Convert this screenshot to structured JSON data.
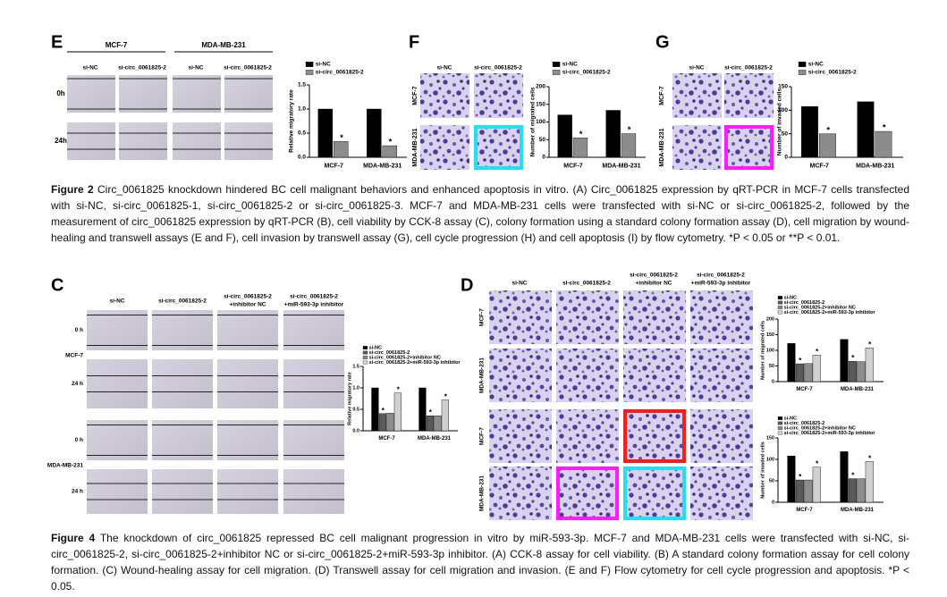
{
  "figure2": {
    "E": {
      "label": "E",
      "groups": [
        "MCF-7",
        "MDA-MB-231"
      ],
      "columns": [
        "si-NC",
        "si-circ_0061825-2",
        "si-NC",
        "si-circ_0061825-2"
      ],
      "rows": [
        "0h",
        "24h"
      ],
      "chart": {
        "type": "bar",
        "ylabel": "Relative migratory rate",
        "categories": [
          "MCF-7",
          "MDA-MB-231"
        ],
        "series": [
          {
            "name": "si-NC",
            "color": "#000000",
            "values": [
              1.0,
              1.0
            ]
          },
          {
            "name": "si-circ_0061825-2",
            "color": "#8c8c8c",
            "values": [
              0.33,
              0.24
            ]
          }
        ],
        "ylim": [
          0,
          1.5
        ],
        "yticks": [
          {
            "value": 0,
            "label": "0.0"
          },
          {
            "value": 0.5,
            "label": "0.5"
          },
          {
            "value": 1.0,
            "label": "1.0"
          },
          {
            "value": 1.5,
            "label": "1.5"
          }
        ],
        "significance": "*"
      }
    },
    "F": {
      "label": "F",
      "columns": [
        "si-NC",
        "si-circ_0061825-2"
      ],
      "rows": [
        "MCF-7",
        "MDA-MB-231"
      ],
      "highlights": [
        {
          "row": 1,
          "col": 1,
          "color": "#22e0f0"
        }
      ],
      "chart": {
        "type": "bar",
        "ylabel": "Number of migrated cells",
        "categories": [
          "MCF-7",
          "MDA-MB-231"
        ],
        "series": [
          {
            "name": "si-NC",
            "color": "#000000",
            "values": [
              120,
              133
            ]
          },
          {
            "name": "si-circ_0061825-2",
            "color": "#8c8c8c",
            "values": [
              55,
              67
            ]
          }
        ],
        "ylim": [
          0,
          200
        ],
        "yticks": [
          0,
          50,
          100,
          150,
          200
        ],
        "significance": "*"
      }
    },
    "G": {
      "label": "G",
      "columns": [
        "si-NC",
        "si-circ_0061825-2"
      ],
      "rows": [
        "MCF-7",
        "MDA-MB-231"
      ],
      "highlights": [
        {
          "row": 1,
          "col": 1,
          "color": "#ff1aff"
        }
      ],
      "chart": {
        "type": "bar",
        "ylabel": "Number of invaded cells",
        "categories": [
          "MCF-7",
          "MDA-MB-231"
        ],
        "series": [
          {
            "name": "si-NC",
            "color": "#000000",
            "values": [
              108,
              118
            ]
          },
          {
            "name": "si-circ_0061825-2",
            "color": "#8c8c8c",
            "values": [
              50,
              55
            ]
          }
        ],
        "ylim": [
          0,
          150
        ],
        "yticks": [
          0,
          50,
          100,
          150
        ],
        "significance": "*"
      }
    },
    "caption": {
      "label": "Figure 2",
      "text": "Circ_0061825 knockdown hindered BC cell malignant behaviors and enhanced apoptosis in vitro. (A) Circ_0061825 expression by qRT-PCR in MCF-7 cells transfected with si-NC, si-circ_0061825-1, si-circ_0061825-2 or si-circ_0061825-3. MCF-7 and MDA-MB-231 cells were transfected with si-NC or si-circ_0061825-2, followed by the measurement of circ_0061825 expression by qRT-PCR (B), cell viability by CCK-8 assay (C), colony formation using a standard colony formation assay (D), cell migration by wound-healing and transwell assays (E and F), cell invasion by transwell assay (G), cell cycle progression (H) and cell apoptosis (I) by flow cytometry. *P < 0.05 or **P < 0.01."
    }
  },
  "figure4": {
    "C": {
      "label": "C",
      "columns": [
        [
          "si-NC"
        ],
        [
          "si-circ_0061825-2"
        ],
        [
          "si-circ_0061825-2",
          "+inhibitor NC"
        ],
        [
          "si-circ_0061825-2",
          "+miR-593-3p inhibitor"
        ]
      ],
      "groups": [
        {
          "name": "MCF-7",
          "rows": [
            "0 h",
            "24 h"
          ]
        },
        {
          "name": "MDA-MB-231",
          "rows": [
            "0 h",
            "24 h"
          ]
        }
      ],
      "chart": {
        "type": "bar",
        "ylabel": "Relative migratory rate",
        "categories": [
          "MCF-7",
          "MDA-MB-231"
        ],
        "series": [
          {
            "name": "si-NC",
            "color": "#000000",
            "values": [
              1.0,
              1.0
            ]
          },
          {
            "name": "si-circ_0061825-2",
            "color": "#5a5a5a",
            "values": [
              0.4,
              0.35
            ]
          },
          {
            "name": "si-circ_0061825-2+inhibitor NC",
            "color": "#8c8c8c",
            "values": [
              0.41,
              0.35
            ]
          },
          {
            "name": "si-circ_0061825-2+miR-593-3p inhibitor",
            "color": "#d0d0d0",
            "values": [
              0.88,
              0.72
            ]
          }
        ],
        "ylim": [
          0,
          1.5
        ],
        "yticks": [
          {
            "value": 0,
            "label": "0.0"
          },
          {
            "value": 0.5,
            "label": "0.5"
          },
          {
            "value": 1.0,
            "label": "1.0"
          },
          {
            "value": 1.5,
            "label": "1.5"
          }
        ],
        "significance": "*"
      }
    },
    "D": {
      "label": "D",
      "columns": [
        [
          "si-NC"
        ],
        [
          "si-circ_0061825-2"
        ],
        [
          "si-circ_0061825-2",
          "+inhibitor NC"
        ],
        [
          "si-circ_0061825-2",
          "+miR-593-3p inhibitor"
        ]
      ],
      "rows": [
        "MCF-7",
        "MDA-MB-231",
        "MCF-7",
        "MDA-MB-231"
      ],
      "highlights": [
        {
          "row": 2,
          "col": 2,
          "color": "#ff1a1a"
        },
        {
          "row": 3,
          "col": 1,
          "color": "#ff1aff"
        },
        {
          "row": 3,
          "col": 2,
          "color": "#22e0f0"
        }
      ],
      "migration_chart": {
        "type": "bar",
        "ylabel": "Number of migrated cells",
        "categories": [
          "MCF-7",
          "MDA-MB-231"
        ],
        "series": [
          {
            "name": "si-NC",
            "color": "#000000",
            "values": [
              122,
              135
            ]
          },
          {
            "name": "si-circ_0061825-2",
            "color": "#5a5a5a",
            "values": [
              57,
              65
            ]
          },
          {
            "name": "si-circ_0061825-2+inhibitor NC",
            "color": "#8c8c8c",
            "values": [
              58,
              64
            ]
          },
          {
            "name": "si-circ_0061825-2+miR-593-3p inhibitor",
            "color": "#d0d0d0",
            "values": [
              85,
              108
            ]
          }
        ],
        "ylim": [
          0,
          200
        ],
        "yticks": [
          0,
          50,
          100,
          150,
          200
        ],
        "significance": "*"
      },
      "invasion_chart": {
        "type": "bar",
        "ylabel": "Number of invaded cells",
        "categories": [
          "MCF-7",
          "MDA-MB-231"
        ],
        "series": [
          {
            "name": "si-NC",
            "color": "#000000",
            "values": [
              108,
              118
            ]
          },
          {
            "name": "si-circ_0061825-2",
            "color": "#5a5a5a",
            "values": [
              52,
              55
            ]
          },
          {
            "name": "si-circ_0061825-2+inhibitor NC",
            "color": "#8c8c8c",
            "values": [
              52,
              55
            ]
          },
          {
            "name": "si-circ_0061825-2+miR-593-3p inhibitor",
            "color": "#d0d0d0",
            "values": [
              82,
              95
            ]
          }
        ],
        "ylim": [
          0,
          150
        ],
        "yticks": [
          0,
          50,
          100,
          150
        ],
        "significance": "*"
      }
    },
    "caption": {
      "label": "Figure 4",
      "text": "The knockdown of circ_0061825 repressed BC cell malignant progression in vitro by miR-593-3p. MCF-7 and MDA-MB-231 cells were transfected with si-NC, si-circ_0061825-2, si-circ_0061825-2+inhibitor NC or si-circ_0061825-2+miR-593-3p inhibitor. (A) CCK-8 assay for cell viability. (B) A standard colony formation assay for cell colony formation. (C) Wound-healing assay for cell migration. (D) Transwell assay for cell migration and invasion. (E and F) Flow cytometry for cell cycle progression and apoptosis. *P < 0.05."
    }
  }
}
